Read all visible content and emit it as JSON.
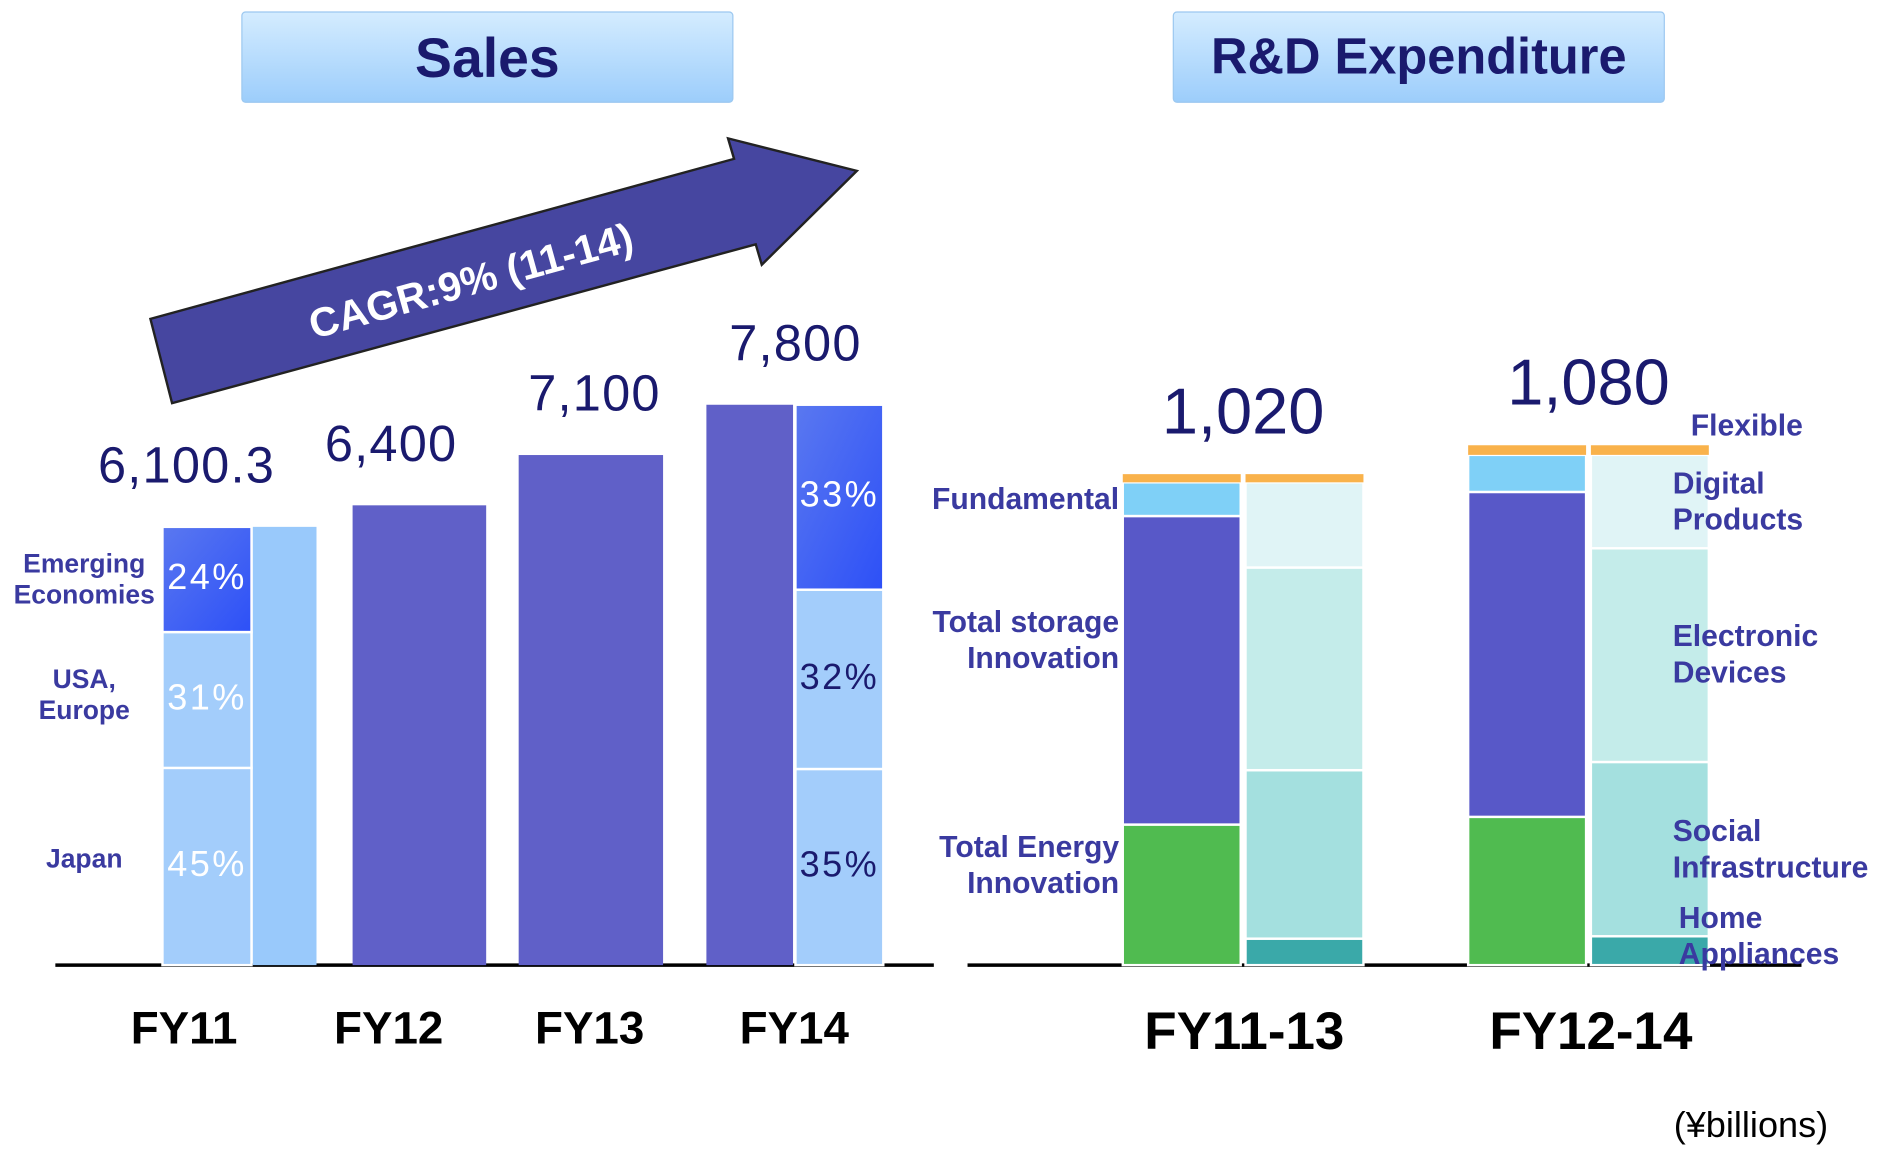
{
  "chart_data": [
    {
      "type": "bar",
      "title": "Sales",
      "categories": [
        "FY11",
        "FY12",
        "FY13",
        "FY14"
      ],
      "values": [
        6100.3,
        6400,
        7100,
        7800
      ],
      "value_labels": [
        "6,100.3",
        "6,400",
        "7,100",
        "7,800"
      ],
      "colors": [
        "#99c9fb",
        "#6060c8",
        "#6060c8",
        "#6060c8"
      ],
      "ylim": [
        0,
        10000
      ],
      "annotation": "CAGR:9% (11-14)",
      "breakdown": {
        "series": [
          {
            "name": "Japan",
            "color": "#a3cdfb",
            "values": [
              45,
              null,
              null,
              35
            ],
            "value_labels": [
              "45%",
              null,
              null,
              "35%"
            ]
          },
          {
            "name": "USA, Europe",
            "color": "#a3cdfb",
            "values": [
              31,
              null,
              null,
              32
            ],
            "value_labels": [
              "31%",
              null,
              null,
              "32%"
            ]
          },
          {
            "name": "Emerging Economies",
            "color": "#3d63f2",
            "values": [
              24,
              null,
              null,
              33
            ],
            "value_labels": [
              "24%",
              null,
              null,
              "33%"
            ]
          }
        ]
      }
    },
    {
      "type": "stacked_bar",
      "title": "R&D Expenditure",
      "categories": [
        "FY11-13",
        "FY12-14"
      ],
      "values": [
        1020,
        1080
      ],
      "value_labels": [
        "1,020",
        "1,080"
      ],
      "ylim": [
        0,
        1500
      ],
      "units": "(¥billions)",
      "business": [
        {
          "name": "Total Energy Innovation",
          "color": "#50bb50",
          "values": [
            292,
            308
          ]
        },
        {
          "name": "Total storage Innovation",
          "color": "#5858c8",
          "values": [
            641,
            675
          ]
        },
        {
          "name": "Fundamental",
          "color": "#7fd0f7",
          "values": [
            70,
            77
          ]
        }
      ],
      "products": [
        {
          "name": "Home Appliances",
          "color": "#3aa9a9",
          "values": [
            55,
            60
          ]
        },
        {
          "name": "Social Infrastructure",
          "color": "#a4e0df",
          "values": [
            350,
            362
          ]
        },
        {
          "name": "Electronic Devices",
          "color": "#c4ecea",
          "values": [
            421,
            444
          ]
        },
        {
          "name": "Digital Products",
          "color": "#e0f4f6",
          "values": [
            177,
            194
          ]
        }
      ],
      "flexible": {
        "name": "Flexible",
        "color": "#f9b24b",
        "values": [
          17,
          20
        ]
      }
    }
  ]
}
